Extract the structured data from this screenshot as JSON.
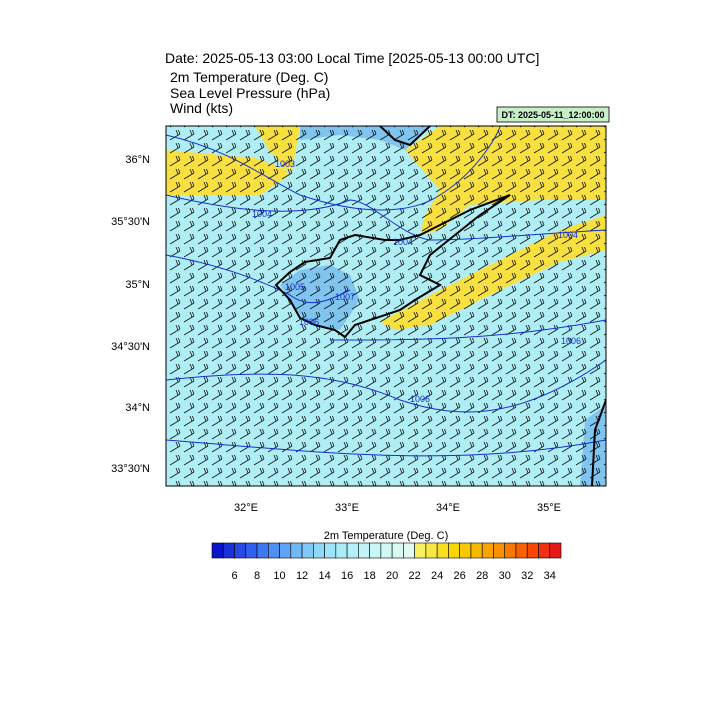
{
  "header": {
    "title": "Date: 2025-05-13  03:00 Local Time [2025-05-13  00:00 UTC]",
    "lines": [
      "2m Temperature (Deg. C)",
      "Sea Level Pressure   (hPa)",
      "Wind   (kts)"
    ],
    "run_label": "DT: 2025-05-11_12:00:00"
  },
  "map": {
    "lat_labels": [
      "36°N",
      "35°30'N",
      "35°N",
      "34°30'N",
      "34°N",
      "33°30'N"
    ],
    "lon_labels": [
      "32°E",
      "33°E",
      "34°E",
      "35°E"
    ],
    "contour_labels": [
      "1003",
      "1004",
      "1004",
      "1004",
      "1005",
      "1006",
      "1006",
      "1006",
      "1007"
    ]
  },
  "colorbar": {
    "title": "2m Temperature (Deg. C)",
    "labels": [
      6,
      8,
      10,
      12,
      14,
      16,
      18,
      20,
      22,
      24,
      26,
      28,
      30,
      32,
      34
    ],
    "colors": [
      "#0a14c8",
      "#1a30d8",
      "#2848e6",
      "#3060f0",
      "#4078f4",
      "#5090f4",
      "#60a4f4",
      "#70b8f6",
      "#80c8f8",
      "#90d8fa",
      "#a0e4fa",
      "#a8ecf8",
      "#b4f0f8",
      "#c0f4f8",
      "#c8f6f6",
      "#d0f8f4",
      "#d8faf2",
      "#e0fcf0",
      "#f8f060",
      "#f8e840",
      "#f8e020",
      "#f8d800",
      "#f8c800",
      "#f8b800",
      "#f8a400",
      "#f89000",
      "#f87800",
      "#f86000",
      "#f84800",
      "#f03010",
      "#e81818"
    ]
  }
}
